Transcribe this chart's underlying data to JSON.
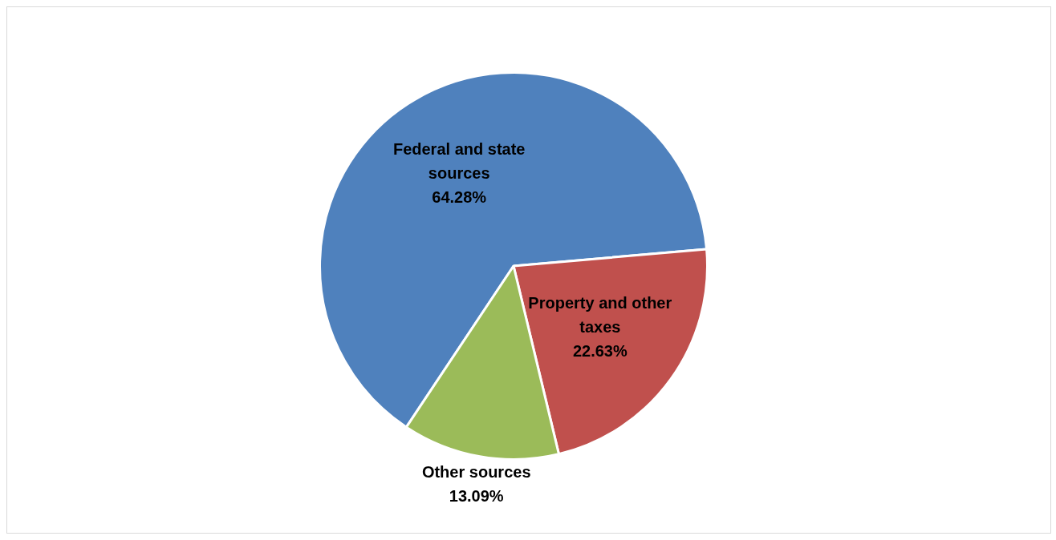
{
  "chart_data": {
    "type": "pie",
    "categories": [
      "Federal and state sources",
      "Property and other taxes",
      "Other sources"
    ],
    "values": [
      64.28,
      22.63,
      13.09
    ],
    "colors": [
      "#4f81bd",
      "#c0504d",
      "#9bbb59"
    ],
    "value_labels": [
      "64.28%",
      "22.63%",
      "13.09%"
    ],
    "legend": false
  }
}
